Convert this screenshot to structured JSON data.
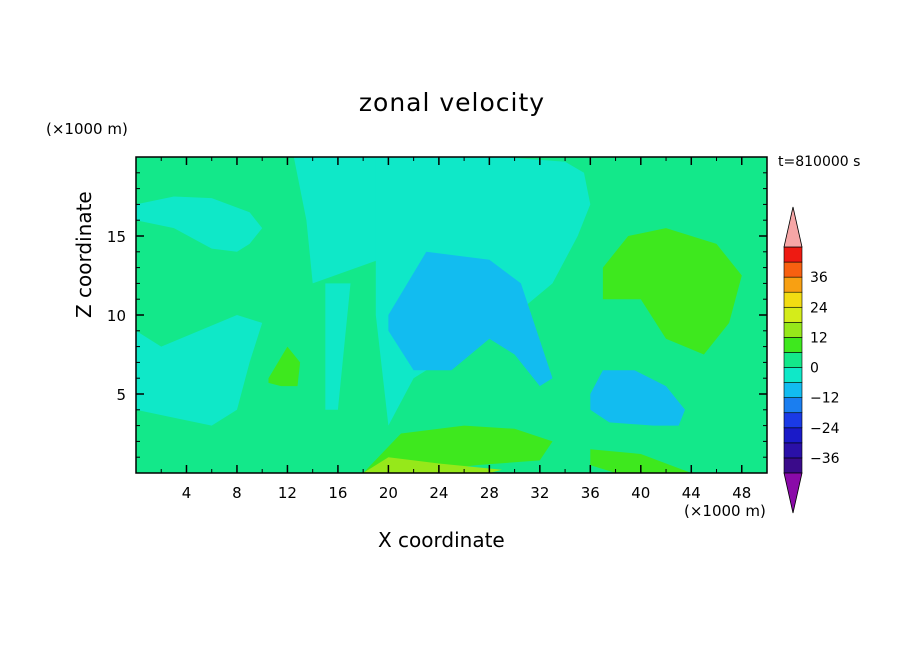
{
  "chart_data": {
    "type": "heatmap",
    "title": "zonal velocity",
    "xlabel": "X coordinate",
    "ylabel": "Z coordinate",
    "x_unit": "(×1000 m)",
    "y_unit": "(×1000 m)",
    "time_label": "t=810000 s",
    "xlim": [
      0,
      50
    ],
    "ylim": [
      0,
      20
    ],
    "x_ticks": [
      "4",
      "8",
      "12",
      "16",
      "20",
      "24",
      "28",
      "32",
      "36",
      "40",
      "44",
      "48"
    ],
    "y_ticks": [
      "5",
      "10",
      "15"
    ],
    "colorbar": {
      "labels": [
        "36",
        "24",
        "12",
        "0",
        "-12",
        "-24",
        "-36"
      ],
      "levels": [
        -42,
        -36,
        -30,
        -24,
        -18,
        -12,
        -6,
        0,
        6,
        12,
        18,
        24,
        30,
        36,
        42
      ],
      "colors": [
        "#3a0b8a",
        "#2a10a8",
        "#1a1ac8",
        "#1a3ae6",
        "#1a7ef0",
        "#12bcf0",
        "#0fe8c8",
        "#13e88a",
        "#3ee81e",
        "#96e81a",
        "#d4ec1a",
        "#f2dc12",
        "#f8a012",
        "#f86010",
        "#ee1a12"
      ],
      "under_color": "#8a0aa8",
      "over_color": "#f6a6a6"
    },
    "field": {
      "background_level": 0,
      "regions": [
        {
          "level": -6,
          "x": [
            12.5,
            19.5,
            22,
            21,
            14,
            13.5
          ],
          "z": [
            20,
            20,
            17,
            14,
            12,
            16
          ]
        },
        {
          "level": -6,
          "x": [
            19,
            29,
            34,
            35.5,
            36,
            35,
            33,
            30,
            26,
            22,
            20,
            19
          ],
          "z": [
            20,
            20,
            19.7,
            19,
            17,
            15,
            12,
            10,
            8,
            6,
            3,
            10
          ]
        },
        {
          "level": -6,
          "x": [
            0,
            2,
            8,
            10,
            9,
            8,
            6,
            3,
            0
          ],
          "z": [
            9,
            8,
            10,
            9.5,
            7,
            4,
            3,
            3.5,
            4
          ]
        },
        {
          "level": -6,
          "x": [
            15,
            17,
            16,
            15
          ],
          "z": [
            12,
            12,
            4,
            4
          ]
        },
        {
          "level": -6,
          "x": [
            0,
            3,
            6,
            9,
            10,
            9,
            8,
            6,
            3,
            0
          ],
          "z": [
            17,
            17.5,
            17.4,
            16.5,
            15.5,
            14.5,
            14,
            14.2,
            15.5,
            16
          ]
        },
        {
          "level": -12,
          "x": [
            20,
            23,
            28,
            30.5,
            33,
            32,
            30,
            28,
            25,
            22,
            20
          ],
          "z": [
            10,
            14,
            13.5,
            12,
            6,
            5.5,
            7.5,
            8.5,
            6.5,
            6.5,
            9
          ]
        },
        {
          "level": -12,
          "x": [
            36,
            37,
            39.5,
            42,
            43.5,
            43,
            41,
            37.5,
            36
          ],
          "z": [
            5,
            6.5,
            6.5,
            5.5,
            4,
            3,
            3,
            3.2,
            4
          ]
        },
        {
          "level": 6,
          "x": [
            37,
            39,
            42,
            46,
            48,
            47,
            45,
            42,
            40,
            37
          ],
          "z": [
            13,
            15,
            15.5,
            14.5,
            12.5,
            9.5,
            7.5,
            8.5,
            11,
            11
          ]
        },
        {
          "level": 6,
          "x": [
            10.5,
            12,
            13,
            12.8,
            11.5,
            10.5
          ],
          "z": [
            6,
            8,
            7,
            5.5,
            5.5,
            5.7
          ]
        },
        {
          "level": 6,
          "x": [
            18,
            21,
            26,
            30,
            33,
            32,
            27,
            22,
            18
          ],
          "z": [
            0,
            2.5,
            3,
            2.8,
            2,
            0.8,
            0.5,
            0,
            0
          ]
        },
        {
          "level": 6,
          "x": [
            36,
            40,
            44,
            38,
            36
          ],
          "z": [
            1.5,
            1.2,
            0,
            0,
            0.5
          ]
        },
        {
          "level": 12,
          "x": [
            18,
            20,
            24,
            29,
            28,
            22,
            18
          ],
          "z": [
            0,
            1,
            0.6,
            0.2,
            0,
            0,
            0
          ]
        }
      ]
    }
  }
}
